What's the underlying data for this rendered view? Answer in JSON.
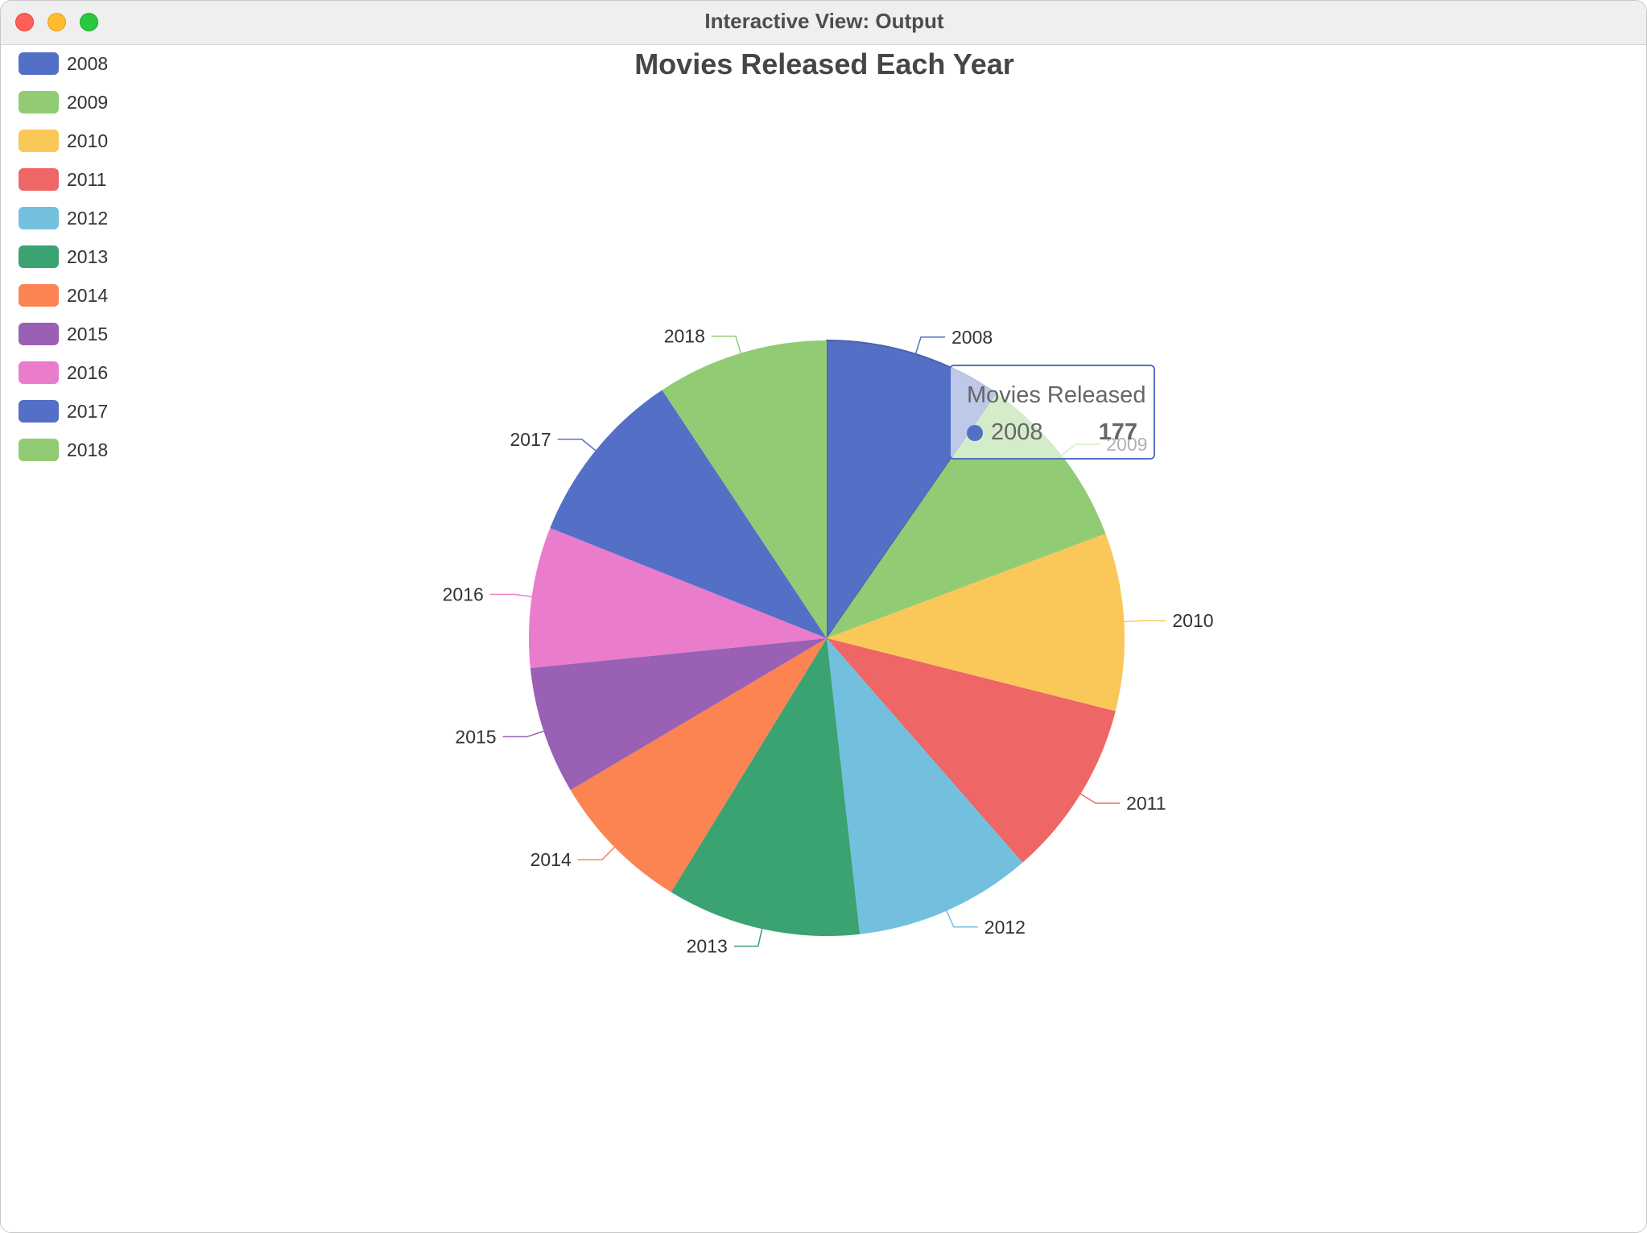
{
  "window": {
    "title": "Interactive View: Output",
    "buttons": [
      "close",
      "minimize",
      "zoom"
    ]
  },
  "chart_data": {
    "type": "pie",
    "title": "Movies Released Each Year",
    "series_name": "Movies Released",
    "categories": [
      "2008",
      "2009",
      "2010",
      "2011",
      "2012",
      "2013",
      "2014",
      "2015",
      "2016",
      "2017",
      "2018"
    ],
    "values": [
      177,
      177,
      177,
      177,
      177,
      193,
      142,
      127,
      140,
      177,
      171
    ],
    "colors": [
      "#5470c6",
      "#91cc75",
      "#fac858",
      "#ee6666",
      "#73c0de",
      "#3ba272",
      "#fc8452",
      "#9a60b4",
      "#ea7ccc",
      "#5470c6",
      "#91cc75"
    ],
    "legend_position": "top-left",
    "labels_outside": true
  },
  "tooltip": {
    "title": "Movies Released",
    "name": "2008",
    "value": "177",
    "color": "#5470c6"
  }
}
